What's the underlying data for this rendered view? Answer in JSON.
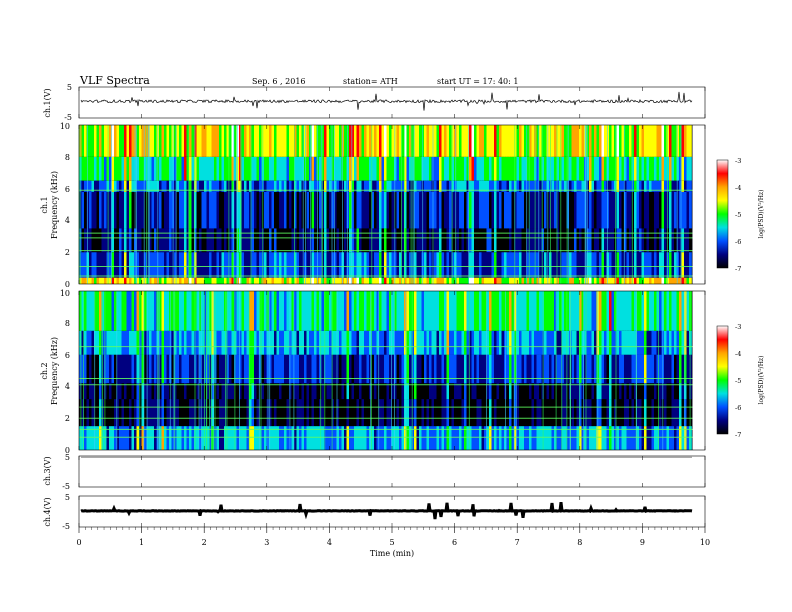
{
  "header": {
    "title": "VLF  Spectra",
    "date": "Sep. 6  , 2016",
    "station": "station= ATH",
    "start": "start  UT  =     17: 40: 1"
  },
  "colorbar": {
    "label": "log(PSD)(V²/Hz)",
    "ticks": [
      "-3",
      "-4",
      "-5",
      "-6",
      "-7"
    ],
    "colors": [
      "#ffffff",
      "#ff0000",
      "#ffa500",
      "#ffff00",
      "#00ff00",
      "#00e0e0",
      "#0050ff",
      "#000080",
      "#000000"
    ]
  },
  "chart_data": [
    {
      "type": "line",
      "name": "ch1",
      "ylabel": "ch.1(V)",
      "ylim": [
        -5,
        5
      ],
      "yticks": [
        "5",
        "-5"
      ],
      "baseline_v": 0.4,
      "noise_v": 0.9
    },
    {
      "type": "heatmap",
      "name": "ch1-spectrogram",
      "ylabel": "ch.1",
      "ylabel2": "Frequency  (kHz)",
      "ylim": [
        0,
        10
      ],
      "yticks": [
        "0",
        "2",
        "4",
        "6",
        "8",
        "10"
      ],
      "x_end_min": 9.8,
      "bands_khz": [
        {
          "from": 0,
          "to": 0.4,
          "level": -4.5
        },
        {
          "from": 0.4,
          "to": 2.0,
          "level": -6.2
        },
        {
          "from": 2.0,
          "to": 3.5,
          "level": -6.7
        },
        {
          "from": 3.5,
          "to": 5.8,
          "level": -6.5
        },
        {
          "from": 5.8,
          "to": 6.5,
          "level": -6.0
        },
        {
          "from": 6.5,
          "to": 8.0,
          "level": -5.3
        },
        {
          "from": 8.0,
          "to": 10.0,
          "level": -4.6
        }
      ],
      "tones_khz": [
        0.5,
        1.1,
        2.1,
        2.9,
        3.2,
        5.9
      ]
    },
    {
      "type": "heatmap",
      "name": "ch2-spectrogram",
      "ylabel": "ch.2",
      "ylabel2": "Frequency  (kHz)",
      "ylim": [
        0,
        10
      ],
      "yticks": [
        "0",
        "2",
        "4",
        "6",
        "8",
        "10"
      ],
      "x_end_min": 9.8,
      "bands_khz": [
        {
          "from": 0,
          "to": 1.5,
          "level": -5.8
        },
        {
          "from": 1.5,
          "to": 3.2,
          "level": -6.9
        },
        {
          "from": 3.2,
          "to": 4.2,
          "level": -6.8
        },
        {
          "from": 4.2,
          "to": 6.0,
          "level": -6.3
        },
        {
          "from": 6.0,
          "to": 7.5,
          "level": -5.8
        },
        {
          "from": 7.5,
          "to": 10.0,
          "level": -5.3
        }
      ],
      "tones_khz": [
        0.8,
        1.3,
        2.0,
        2.7,
        4.1,
        4.5,
        6.5
      ]
    },
    {
      "type": "line",
      "name": "ch3",
      "ylabel": "ch.3(V)",
      "ylim": [
        -5,
        5
      ],
      "yticks": [
        "5",
        "-5"
      ],
      "baseline_v": 4.6,
      "noise_v": 0
    },
    {
      "type": "line",
      "name": "ch4",
      "ylabel": "ch.4(V)",
      "ylim": [
        -5,
        5
      ],
      "yticks": [
        "5",
        "-5"
      ],
      "baseline_v": 0.2,
      "noise_v": 0.15,
      "thick": true
    }
  ],
  "xaxis": {
    "label": "Time  (min)",
    "xlim": [
      0,
      10
    ],
    "ticks": [
      "0",
      "1",
      "2",
      "3",
      "4",
      "5",
      "6",
      "7",
      "8",
      "9",
      "10"
    ]
  }
}
